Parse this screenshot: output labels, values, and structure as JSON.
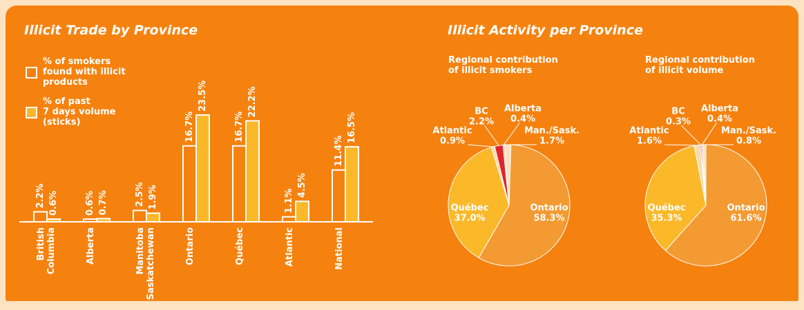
{
  "panel_title": "Illicit Activity per Province",
  "chart_data": [
    {
      "type": "bar",
      "title": "Illicit Trade by Province",
      "categories": [
        "British\nColumbia",
        "Alberta",
        "Manitoba\nSaskatchewan",
        "Ontario",
        "Québec",
        "Atlantic",
        "National"
      ],
      "series": [
        {
          "name": "% of smokers\nfound with illicit\nproducts",
          "color": "none",
          "values": [
            2.2,
            0.6,
            2.5,
            16.7,
            16.7,
            1.1,
            11.4
          ],
          "value_labels": [
            "2.2%",
            "0.6%",
            "2.5%",
            "16.7%",
            "16.7%",
            "1.1%",
            "11.4%"
          ]
        },
        {
          "name": "% of past\n7 days volume\n(sticks)",
          "color": "#fbb829",
          "values": [
            0.6,
            0.7,
            1.9,
            23.5,
            22.2,
            4.5,
            16.5
          ],
          "value_labels": [
            "0.6%",
            "0.7%",
            "1.9%",
            "23.5%",
            "22.2%",
            "4.5%",
            "16.5%"
          ]
        }
      ]
    },
    {
      "type": "pie",
      "subtitle": "Regional contribution\nof illicit smokers",
      "categories": [
        "Ontario",
        "Québec",
        "Atlantic",
        "BC",
        "Alberta",
        "Man./Sask."
      ],
      "values": [
        58.3,
        37.0,
        0.9,
        2.2,
        0.4,
        1.7
      ],
      "value_labels": [
        "58.3%",
        "37.0%",
        "0.9%",
        "2.2%",
        "0.4%",
        "1.7%"
      ],
      "colors": [
        "#f39a32",
        "#fbb829",
        "#f8dcaa",
        "#e0262b",
        "#f2b2a0",
        "#f9e2bc"
      ]
    },
    {
      "type": "pie",
      "subtitle": "Regional contribution\nof illicit volume",
      "categories": [
        "Ontario",
        "Québec",
        "Atlantic",
        "BC",
        "Alberta",
        "Man./Sask."
      ],
      "values": [
        61.6,
        35.3,
        1.6,
        0.3,
        0.4,
        0.8
      ],
      "value_labels": [
        "61.6%",
        "35.3%",
        "1.6%",
        "0.3%",
        "0.4%",
        "0.8%"
      ],
      "colors": [
        "#f39a32",
        "#fbb829",
        "#f8dcaa",
        "#e0262b",
        "#f2b2a0",
        "#f9e2bc"
      ]
    }
  ]
}
